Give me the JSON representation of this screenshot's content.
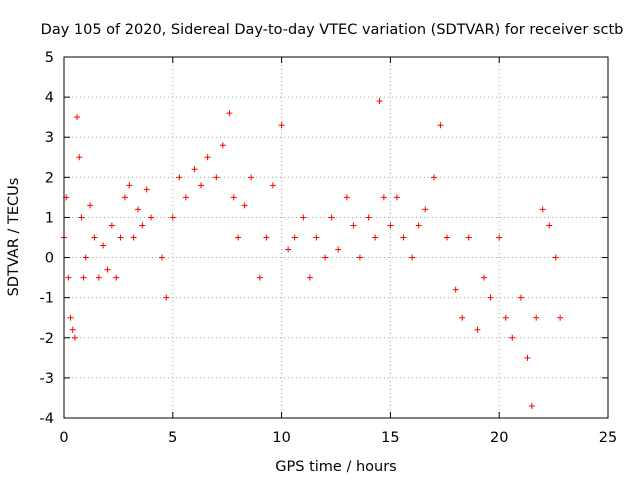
{
  "chart_data": {
    "type": "scatter",
    "title": "Day 105 of 2020, Sidereal Day-to-day VTEC variation (SDTVAR) for receiver sctb",
    "xlabel": "GPS time / hours",
    "ylabel": "SDTVAR / TECUs",
    "xlim": [
      0,
      25
    ],
    "ylim": [
      -4,
      5
    ],
    "xticks": [
      0,
      5,
      10,
      15,
      20,
      25
    ],
    "yticks": [
      -4,
      -3,
      -2,
      -1,
      0,
      1,
      2,
      3,
      4,
      5
    ],
    "grid": true,
    "marker": "+",
    "color": "#ff0000",
    "series": [
      {
        "name": "SDTVAR",
        "x": [
          0.0,
          0.1,
          0.2,
          0.3,
          0.4,
          0.5,
          0.6,
          0.7,
          0.8,
          0.9,
          1.0,
          1.2,
          1.4,
          1.6,
          1.8,
          2.0,
          2.2,
          2.4,
          2.6,
          2.8,
          3.0,
          3.2,
          3.4,
          3.6,
          3.8,
          4.0,
          4.5,
          4.7,
          5.0,
          5.3,
          5.6,
          6.0,
          6.3,
          6.6,
          7.0,
          7.3,
          7.6,
          7.8,
          8.0,
          8.3,
          8.6,
          9.0,
          9.3,
          9.6,
          10.0,
          10.3,
          10.6,
          11.0,
          11.3,
          11.6,
          12.0,
          12.3,
          12.6,
          13.0,
          13.3,
          13.6,
          14.0,
          14.3,
          14.5,
          14.7,
          15.0,
          15.3,
          15.6,
          16.0,
          16.3,
          16.6,
          17.0,
          17.3,
          17.6,
          18.0,
          18.3,
          18.6,
          19.0,
          19.3,
          19.6,
          20.0,
          20.3,
          20.6,
          21.0,
          21.3,
          21.5,
          21.7,
          22.0,
          22.3,
          22.6,
          22.8
        ],
        "y": [
          0.5,
          1.5,
          -0.5,
          -1.5,
          -1.8,
          -2.0,
          3.5,
          2.5,
          1.0,
          -0.5,
          0.0,
          1.3,
          0.5,
          -0.5,
          0.3,
          -0.3,
          0.8,
          -0.5,
          0.5,
          1.5,
          1.8,
          0.5,
          1.2,
          0.8,
          1.7,
          1.0,
          0.0,
          -1.0,
          1.0,
          2.0,
          1.5,
          2.2,
          1.8,
          2.5,
          2.0,
          2.8,
          3.6,
          1.5,
          0.5,
          1.3,
          2.0,
          -0.5,
          0.5,
          1.8,
          3.3,
          0.2,
          0.5,
          1.0,
          -0.5,
          0.5,
          0.0,
          1.0,
          0.2,
          1.5,
          0.8,
          0.0,
          1.0,
          0.5,
          3.9,
          1.5,
          0.8,
          1.5,
          0.5,
          0.0,
          0.8,
          1.2,
          2.0,
          3.3,
          0.5,
          -0.8,
          -1.5,
          0.5,
          -1.8,
          -0.5,
          -1.0,
          0.5,
          -1.5,
          -2.0,
          -1.0,
          -2.5,
          -3.7,
          -1.5,
          1.2,
          0.8,
          0.0,
          -1.5
        ]
      }
    ]
  }
}
